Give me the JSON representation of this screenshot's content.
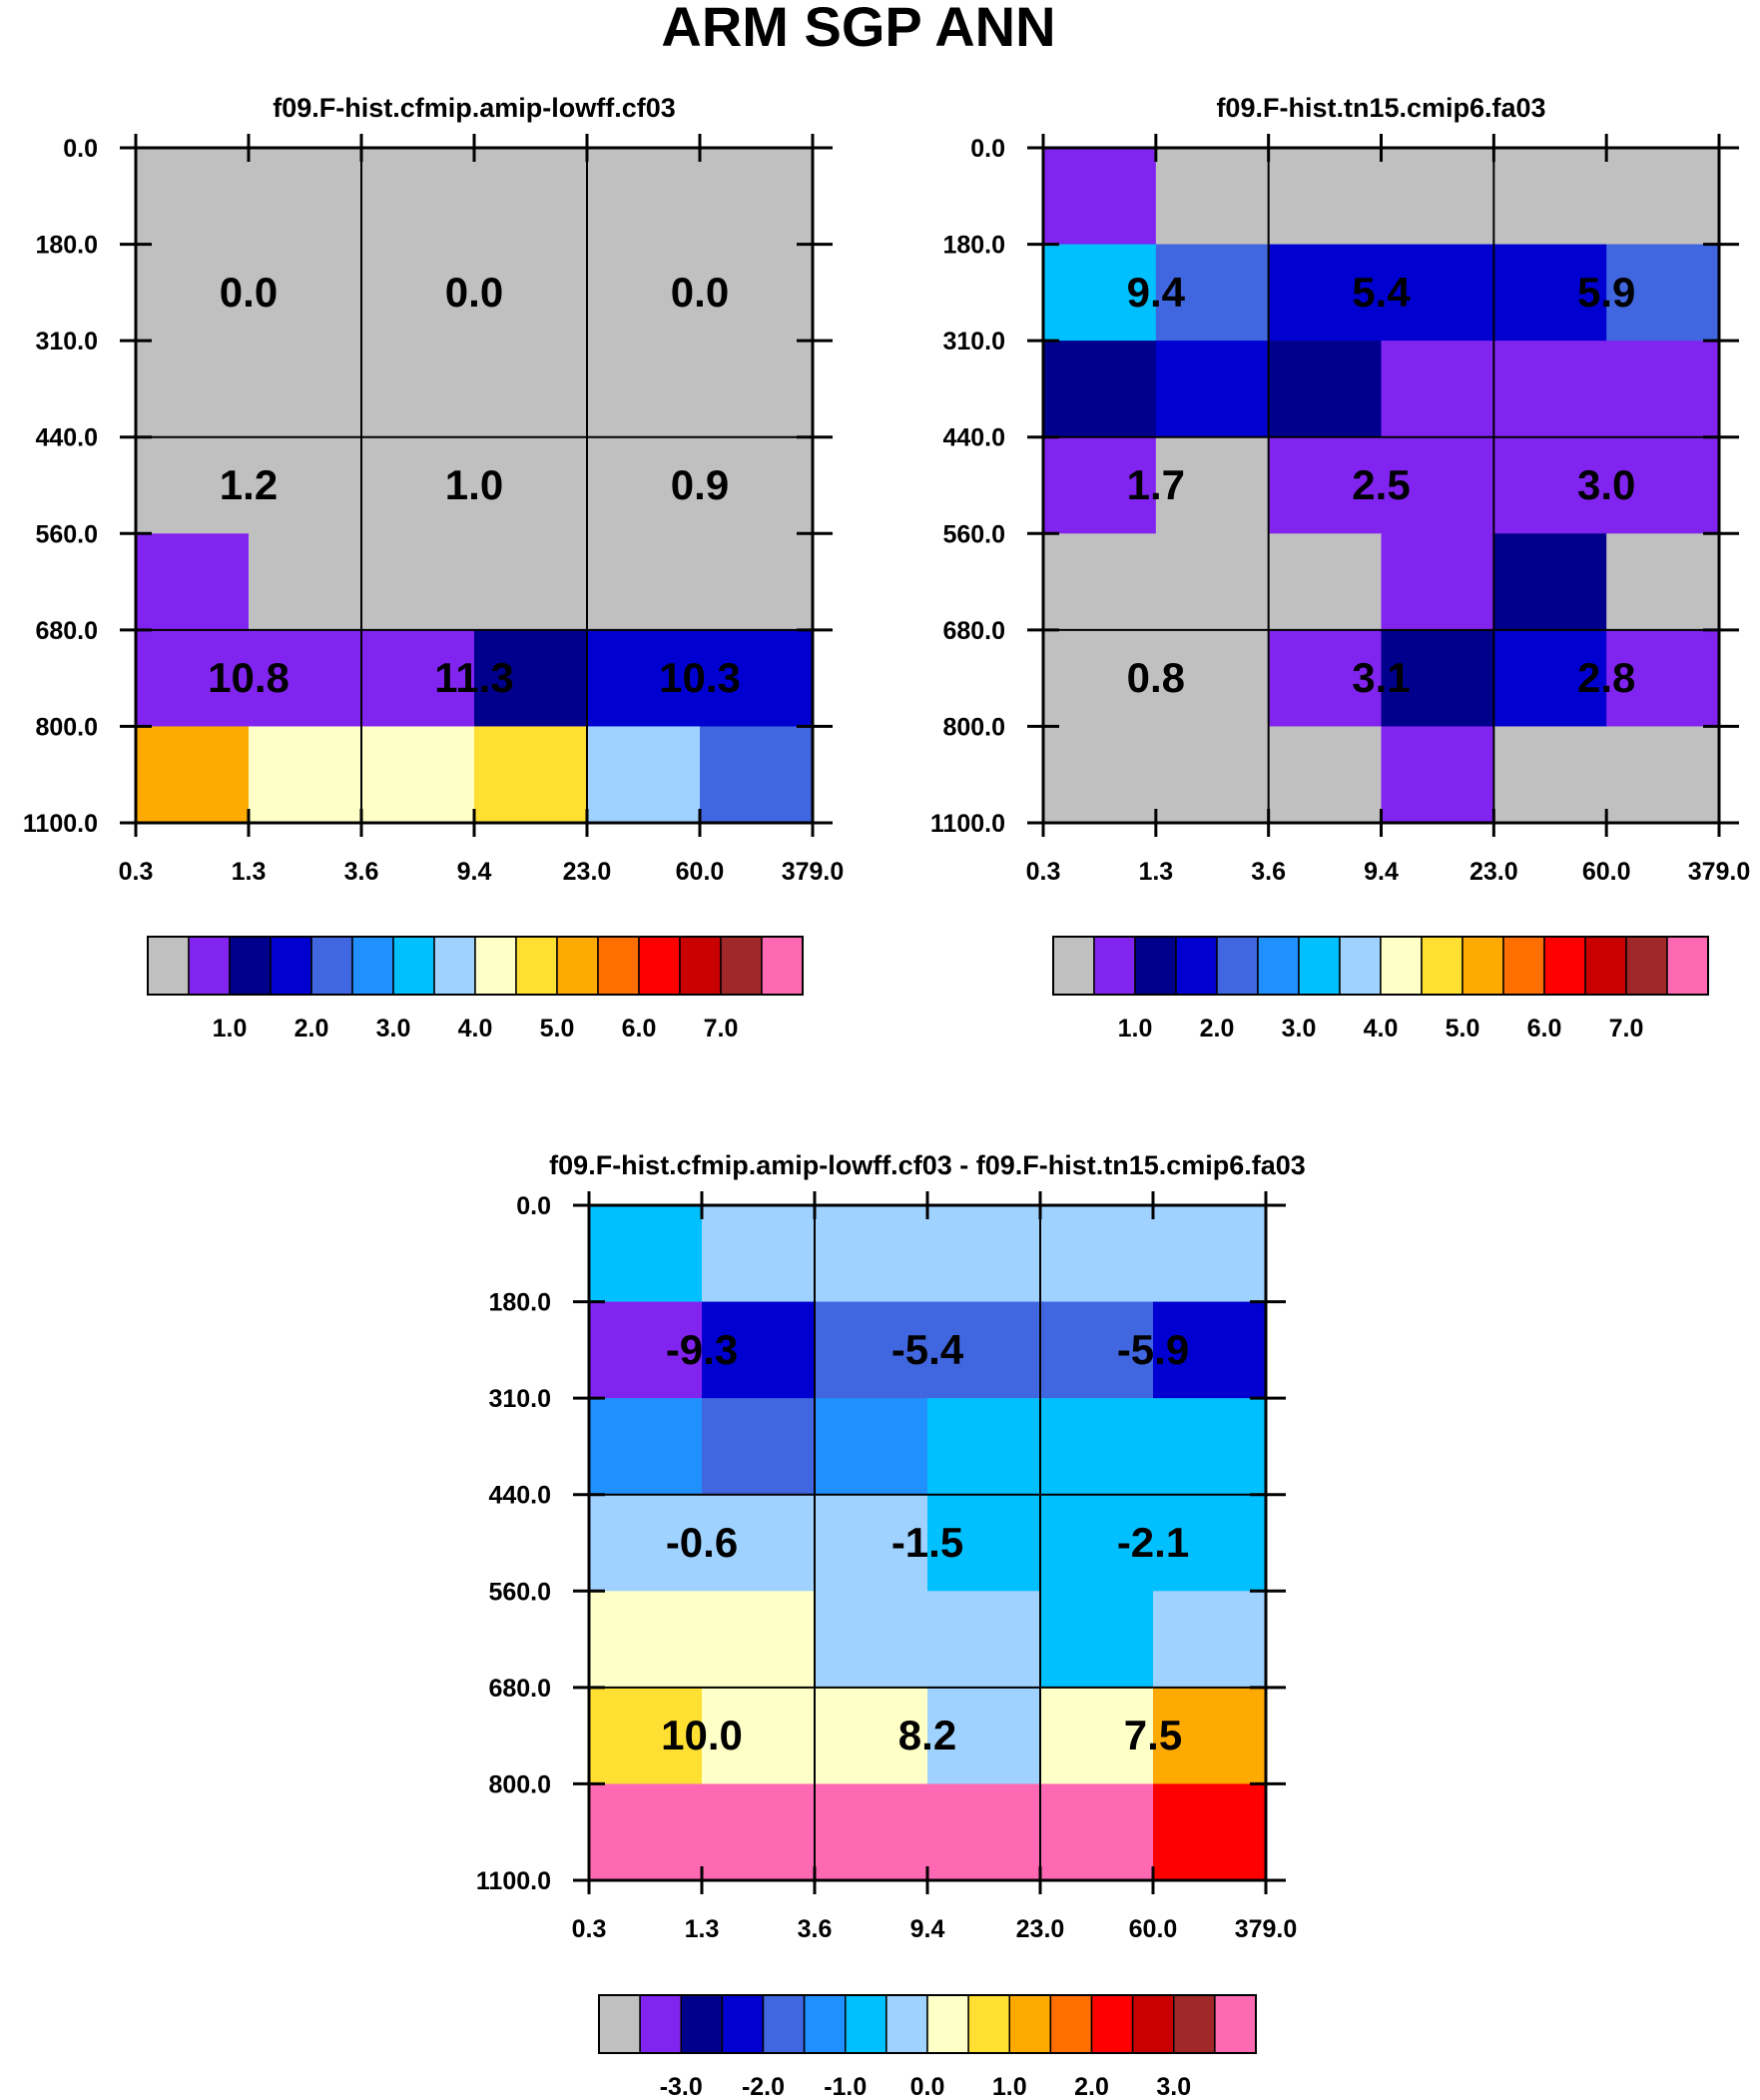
{
  "title": "ARM SGP ANN",
  "y_tick_labels": [
    "0.0",
    "180.0",
    "310.0",
    "440.0",
    "560.0",
    "680.0",
    "800.0",
    "1100.0"
  ],
  "x_tick_labels": [
    "0.3",
    "1.3",
    "3.6",
    "9.4",
    "23.0",
    "60.0",
    "379.0"
  ],
  "colors": {
    "palette": [
      "#c0c0c0",
      "#8224f0",
      "#00008c",
      "#0000d0",
      "#4066e0",
      "#2090ff",
      "#00c0ff",
      "#a0d2ff",
      "#ffffc8",
      "#ffe032",
      "#ffaa00",
      "#ff6e00",
      "#ff0000",
      "#c80000",
      "#a02828",
      "#ff69b4"
    ],
    "grid": "#000000",
    "text": "#000000"
  },
  "chart_data": [
    {
      "type": "heatmap",
      "title": "f09.F-hist.cfmip.amip-lowff.cf03",
      "y_bounds": [
        0,
        180,
        310,
        440,
        560,
        680,
        800,
        1100
      ],
      "x_bounds": [
        0.3,
        1.3,
        3.6,
        9.4,
        23.0,
        60.0,
        379.0
      ],
      "cell_color_index": [
        [
          0,
          0,
          0,
          0,
          0,
          0
        ],
        [
          0,
          0,
          0,
          0,
          0,
          0
        ],
        [
          0,
          0,
          0,
          0,
          0,
          0
        ],
        [
          0,
          0,
          0,
          0,
          0,
          0
        ],
        [
          1,
          0,
          0,
          0,
          0,
          0
        ],
        [
          1,
          1,
          1,
          2,
          3,
          3
        ],
        [
          10,
          8,
          8,
          9,
          7,
          4
        ]
      ],
      "cell_values": [
        [
          "0.0",
          "0.0",
          "0.0"
        ],
        [
          "1.2",
          "1.0",
          "0.9"
        ],
        [
          "10.8",
          "11.3",
          "10.3"
        ]
      ],
      "colorbar_labels": [
        "1.0",
        "2.0",
        "3.0",
        "4.0",
        "5.0",
        "6.0",
        "7.0"
      ]
    },
    {
      "type": "heatmap",
      "title": "f09.F-hist.tn15.cmip6.fa03",
      "y_bounds": [
        0,
        180,
        310,
        440,
        560,
        680,
        800,
        1100
      ],
      "x_bounds": [
        0.3,
        1.3,
        3.6,
        9.4,
        23.0,
        60.0,
        379.0
      ],
      "cell_color_index": [
        [
          1,
          0,
          0,
          0,
          0,
          0
        ],
        [
          6,
          4,
          3,
          3,
          3,
          4
        ],
        [
          2,
          3,
          2,
          1,
          1,
          1
        ],
        [
          1,
          0,
          1,
          1,
          1,
          1
        ],
        [
          0,
          0,
          0,
          1,
          2,
          0
        ],
        [
          0,
          0,
          1,
          2,
          3,
          1
        ],
        [
          0,
          0,
          0,
          1,
          0,
          0
        ]
      ],
      "cell_values": [
        [
          "9.4",
          "5.4",
          "5.9"
        ],
        [
          "1.7",
          "2.5",
          "3.0"
        ],
        [
          "0.8",
          "3.1",
          "2.8"
        ]
      ],
      "colorbar_labels": [
        "1.0",
        "2.0",
        "3.0",
        "4.0",
        "5.0",
        "6.0",
        "7.0"
      ]
    },
    {
      "type": "heatmap",
      "title": "f09.F-hist.cfmip.amip-lowff.cf03 - f09.F-hist.tn15.cmip6.fa03",
      "y_bounds": [
        0,
        180,
        310,
        440,
        560,
        680,
        800,
        1100
      ],
      "x_bounds": [
        0.3,
        1.3,
        3.6,
        9.4,
        23.0,
        60.0,
        379.0
      ],
      "cell_color_index": [
        [
          6,
          7,
          7,
          7,
          7,
          7
        ],
        [
          1,
          3,
          4,
          4,
          4,
          3
        ],
        [
          5,
          4,
          5,
          6,
          6,
          6
        ],
        [
          7,
          7,
          7,
          6,
          6,
          6
        ],
        [
          8,
          8,
          7,
          7,
          6,
          7
        ],
        [
          9,
          8,
          8,
          7,
          8,
          10
        ],
        [
          15,
          15,
          15,
          15,
          15,
          12
        ]
      ],
      "cell_values": [
        [
          "-9.3",
          "-5.4",
          "-5.9"
        ],
        [
          "-0.6",
          "-1.5",
          "-2.1"
        ],
        [
          "10.0",
          "8.2",
          "7.5"
        ]
      ],
      "colorbar_labels": [
        "-3.0",
        "-2.0",
        "-1.0",
        "0.0",
        "1.0",
        "2.0",
        "3.0"
      ]
    }
  ]
}
